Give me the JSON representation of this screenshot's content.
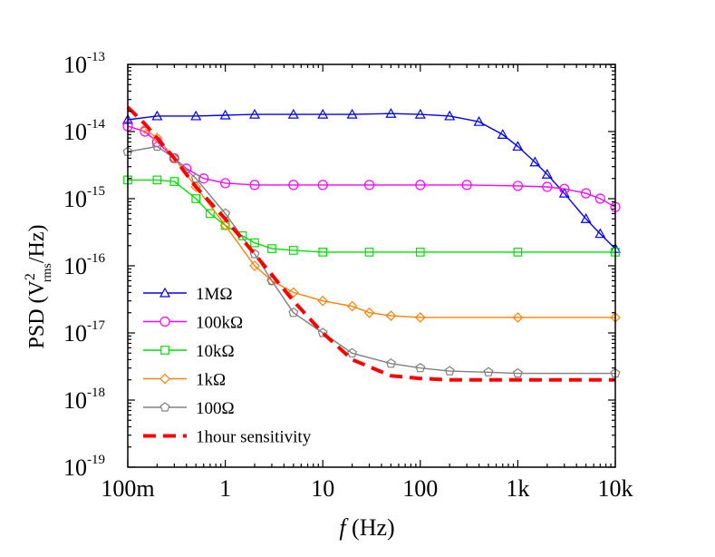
{
  "chart_data": {
    "type": "scatter",
    "title": "",
    "xlabel": {
      "italic": "f",
      "rest": " (Hz)"
    },
    "ylabel": {
      "pre": "PSD (V",
      "sup": "2",
      "sub": "rms",
      "post": "/Hz)"
    },
    "x_scale": "log",
    "y_scale": "log",
    "xlim": [
      0.1,
      10000
    ],
    "ylim": [
      1e-19,
      1e-13
    ],
    "x_ticks": [
      {
        "value": 0.1,
        "label": "100m"
      },
      {
        "value": 1,
        "label": "1"
      },
      {
        "value": 10,
        "label": "10"
      },
      {
        "value": 100,
        "label": "100"
      },
      {
        "value": 1000,
        "label": "1k"
      },
      {
        "value": 10000,
        "label": "10k"
      }
    ],
    "y_ticks": [
      {
        "value": 1e-13,
        "base": "10",
        "exp": "-13"
      },
      {
        "value": 1e-14,
        "base": "10",
        "exp": "-14"
      },
      {
        "value": 1e-15,
        "base": "10",
        "exp": "-15"
      },
      {
        "value": 1e-16,
        "base": "10",
        "exp": "-16"
      },
      {
        "value": 1e-17,
        "base": "10",
        "exp": "-17"
      },
      {
        "value": 1e-18,
        "base": "10",
        "exp": "-18"
      },
      {
        "value": 1e-19,
        "base": "10",
        "exp": "-19"
      }
    ],
    "grid": false,
    "legend_position": "bottom-left",
    "series": [
      {
        "name": "1MΩ",
        "color": "#0000ff",
        "marker": "triangle",
        "x": [
          0.1,
          0.2,
          0.5,
          1,
          2,
          5,
          10,
          20,
          50,
          100,
          200,
          400,
          700,
          1000,
          1500,
          2000,
          3000,
          5000,
          7000,
          10000
        ],
        "y": [
          1.5e-14,
          1.7e-14,
          1.7e-14,
          1.75e-14,
          1.8e-14,
          1.8e-14,
          1.8e-14,
          1.8e-14,
          1.85e-14,
          1.8e-14,
          1.7e-14,
          1.4e-14,
          9e-15,
          6e-15,
          3.5e-15,
          2.3e-15,
          1.2e-15,
          5e-16,
          3e-16,
          1.8e-16
        ]
      },
      {
        "name": "100kΩ",
        "color": "#ff00ff",
        "marker": "circle",
        "x": [
          0.1,
          0.15,
          0.2,
          0.3,
          0.4,
          0.6,
          1,
          2,
          5,
          10,
          30,
          100,
          300,
          1000,
          2000,
          3000,
          5000,
          7000,
          10000
        ],
        "y": [
          1.2e-14,
          1e-14,
          7e-15,
          4e-15,
          2.8e-15,
          2e-15,
          1.7e-15,
          1.6e-15,
          1.6e-15,
          1.6e-15,
          1.6e-15,
          1.6e-15,
          1.6e-15,
          1.55e-15,
          1.5e-15,
          1.4e-15,
          1.2e-15,
          1e-15,
          7.5e-16
        ]
      },
      {
        "name": "10kΩ",
        "color": "#00e000",
        "marker": "square",
        "x": [
          0.1,
          0.2,
          0.3,
          0.5,
          0.7,
          1,
          1.5,
          2,
          3,
          5,
          10,
          30,
          100,
          1000,
          10000
        ],
        "y": [
          1.9e-15,
          1.9e-15,
          1.8e-15,
          1e-15,
          6e-16,
          4e-16,
          2.8e-16,
          2.2e-16,
          1.8e-16,
          1.7e-16,
          1.6e-16,
          1.6e-16,
          1.6e-16,
          1.6e-16,
          1.6e-16
        ]
      },
      {
        "name": "1kΩ",
        "color": "#ff8000",
        "marker": "diamond",
        "x": [
          0.15,
          0.2,
          0.3,
          0.5,
          1,
          2,
          3,
          5,
          10,
          20,
          30,
          50,
          100,
          1000,
          10000
        ],
        "y": [
          1.1e-14,
          8e-15,
          4e-15,
          1.5e-15,
          4e-16,
          1e-16,
          6e-17,
          4e-17,
          3e-17,
          2.5e-17,
          2e-17,
          1.8e-17,
          1.7e-17,
          1.7e-17,
          1.7e-17
        ]
      },
      {
        "name": "100Ω",
        "color": "#808080",
        "marker": "pentagon",
        "x": [
          0.1,
          0.2,
          0.3,
          0.5,
          1,
          2,
          3,
          5,
          10,
          20,
          50,
          100,
          200,
          500,
          1000,
          10000
        ],
        "y": [
          5e-15,
          6e-15,
          4e-15,
          2e-15,
          6e-16,
          1.5e-16,
          6e-17,
          2e-17,
          1e-17,
          5e-18,
          3.5e-18,
          3e-18,
          2.7e-18,
          2.6e-18,
          2.5e-18,
          2.5e-18
        ]
      },
      {
        "name": "1hour sensitivity",
        "color": "#ff0000",
        "marker": "dashed-line",
        "x": [
          0.1,
          0.15,
          0.2,
          0.3,
          0.5,
          1,
          2,
          5,
          10,
          20,
          50,
          100,
          200,
          1000,
          10000
        ],
        "y": [
          2.3e-14,
          1.3e-14,
          8e-15,
          4e-15,
          1.5e-15,
          5e-16,
          1.5e-16,
          3e-17,
          1e-17,
          4e-18,
          2.3e-18,
          2.1e-18,
          2e-18,
          2e-18,
          2e-18
        ]
      }
    ]
  }
}
